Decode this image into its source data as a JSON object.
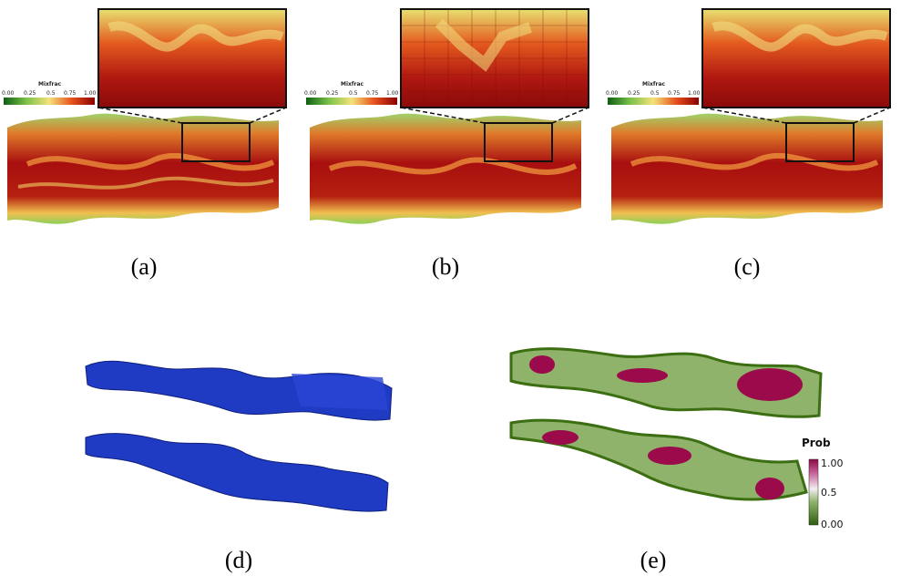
{
  "panels": {
    "a": {
      "caption": "(a)",
      "colorbar_title": "Mixfrac",
      "ticks": [
        "0.00",
        "0.25",
        "0.5",
        "0.75",
        "1.00"
      ]
    },
    "b": {
      "caption": "(b)",
      "colorbar_title": "Mixfrac",
      "ticks": [
        "0.00",
        "0.25",
        "0.5",
        "0.75",
        "1.00"
      ]
    },
    "c": {
      "caption": "(c)",
      "colorbar_title": "Mixfrac",
      "ticks": [
        "0.00",
        "0.25",
        "0.5",
        "0.75",
        "1.00"
      ]
    },
    "d": {
      "caption": "(d)"
    },
    "e": {
      "caption": "(e)",
      "colorbar_title": "Prob",
      "ticks": [
        "1.00",
        "0.5",
        "0.00"
      ]
    }
  },
  "colors": {
    "mixfrac_low": "#1a7a1a",
    "mixfrac_mid": "#f2e070",
    "mixfrac_high": "#8b0000",
    "iso_surface": "#1f3bc4",
    "prob_low": "#3c6e12",
    "prob_high": "#9b0a4a"
  }
}
